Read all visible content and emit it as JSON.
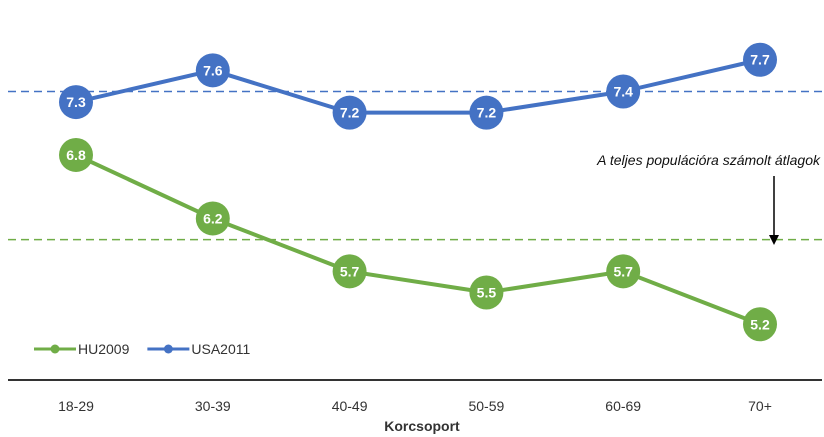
{
  "chart_data": {
    "type": "line",
    "categories": [
      "18-29",
      "30-39",
      "40-49",
      "50-59",
      "60-69",
      "70+"
    ],
    "xlabel": "Korcsoport",
    "ylabel": "",
    "ylim": [
      4.9,
      8.0
    ],
    "grid": false,
    "legend": "bottom-left",
    "series": [
      {
        "name": "HU2009",
        "values": [
          6.8,
          6.2,
          5.7,
          5.5,
          5.7,
          5.2
        ],
        "color": "#70ad47",
        "average": 6.0
      },
      {
        "name": "USA2011",
        "values": [
          7.3,
          7.6,
          7.2,
          7.2,
          7.4,
          7.7
        ],
        "color": "#4472c4",
        "average": 7.4
      }
    ],
    "annotation": "A teljes populációra számolt átlagok"
  }
}
